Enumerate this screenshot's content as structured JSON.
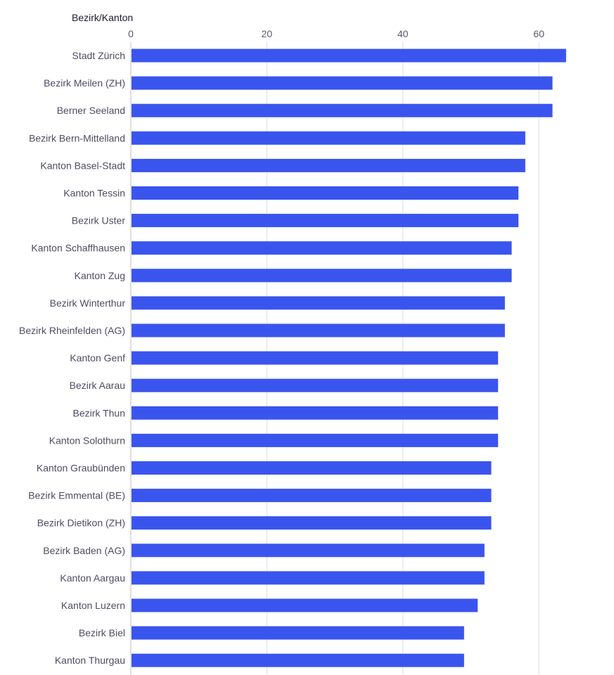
{
  "chart_data": {
    "type": "bar",
    "orientation": "horizontal",
    "title": "",
    "xlabel": "",
    "ylabel": "Bezirk/Kanton",
    "xlim": [
      0,
      64
    ],
    "xticks": [
      0,
      20,
      40,
      60
    ],
    "grid": true,
    "bar_color": "#3a55ee",
    "categories": [
      "Stadt Zürich",
      "Bezirk Meilen (ZH)",
      "Berner Seeland",
      "Bezirk Bern-Mittelland",
      "Kanton Basel-Stadt",
      "Kanton Tessin",
      "Bezirk Uster",
      "Kanton Schaffhausen",
      "Kanton Zug",
      "Bezirk Winterthur",
      "Bezirk Rheinfelden (AG)",
      "Kanton Genf",
      "Bezirk Aarau",
      "Bezirk Thun",
      "Kanton Solothurn",
      "Kanton Graubünden",
      "Bezirk Emmental (BE)",
      "Bezirk Dietikon (ZH)",
      "Bezirk Baden (AG)",
      "Kanton Aargau",
      "Kanton Luzern",
      "Bezirk Biel",
      "Kanton Thurgau"
    ],
    "values": [
      64,
      62,
      62,
      58,
      58,
      57,
      57,
      56,
      56,
      55,
      55,
      54,
      54,
      54,
      54,
      53,
      53,
      53,
      52,
      52,
      51,
      49,
      49
    ]
  }
}
